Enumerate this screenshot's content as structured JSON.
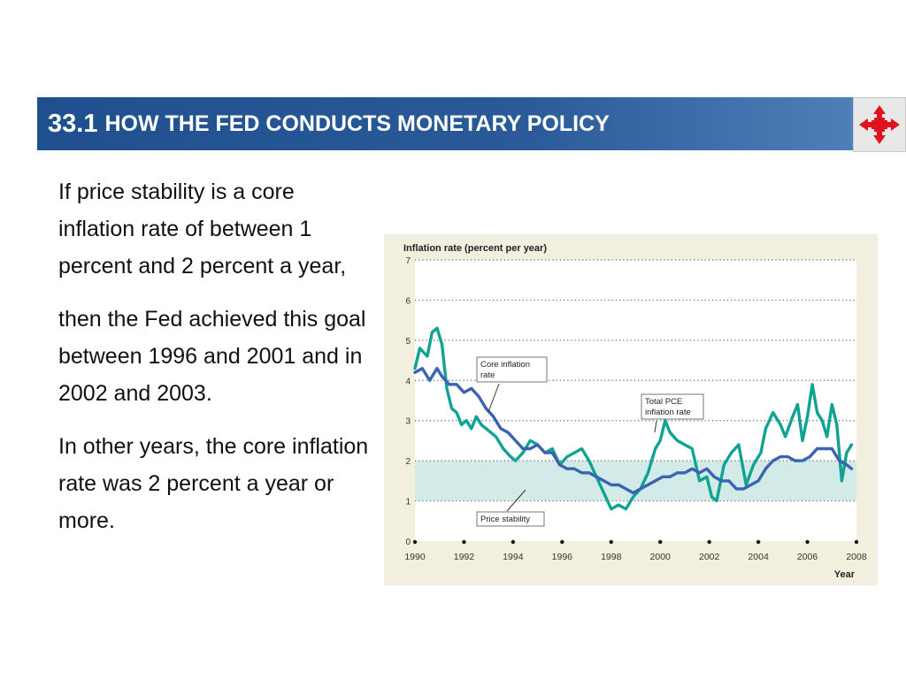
{
  "header": {
    "number": "33.1",
    "title": "HOW THE FED CONDUCTS MONETARY POLICY"
  },
  "nav_icon": "red-four-arrow-navigation-icon",
  "body": {
    "paragraphs": [
      "If price stability is a core inflation rate of between 1 percent and 2 percent a year,",
      "then the Fed achieved this goal between 1996 and 2001 and in 2002 and 2003.",
      "In other years, the core inflation rate was 2 percent a year or more."
    ]
  },
  "colors": {
    "header_blue": "#1f4f8f",
    "core_series": "#3a63b0",
    "total_series": "#10a394",
    "stability_band": "#d2ebe8",
    "panel_bg": "#f2efde",
    "nav_red": "#e0121d"
  },
  "chart_data": {
    "type": "line",
    "title": "Inflation rate (percent per year)",
    "xlabel": "Year",
    "ylabel": "",
    "xlim": [
      1990,
      2008
    ],
    "ylim": [
      0,
      7
    ],
    "x_ticks": [
      "1990",
      "1992",
      "1994",
      "1996",
      "1998",
      "2000",
      "2002",
      "2004",
      "2006",
      "2008"
    ],
    "y_ticks": [
      "0",
      "1",
      "2",
      "3",
      "4",
      "5",
      "6",
      "7"
    ],
    "grid": "dotted-horizontal",
    "shaded_band": {
      "from": 1,
      "to": 2,
      "label": "Price stability"
    },
    "annotations": [
      {
        "text": "Core inflation rate",
        "series": "core"
      },
      {
        "text": "Total PCE inflation rate",
        "series": "total"
      },
      {
        "text": "Price stability",
        "series": "band"
      }
    ],
    "series": [
      {
        "id": "core",
        "name": "Core inflation rate",
        "points": [
          [
            1990.0,
            4.2
          ],
          [
            1990.3,
            4.3
          ],
          [
            1990.6,
            4.0
          ],
          [
            1990.9,
            4.3
          ],
          [
            1991.1,
            4.1
          ],
          [
            1991.4,
            3.9
          ],
          [
            1991.7,
            3.9
          ],
          [
            1992.0,
            3.7
          ],
          [
            1992.3,
            3.8
          ],
          [
            1992.6,
            3.6
          ],
          [
            1992.9,
            3.3
          ],
          [
            1993.2,
            3.1
          ],
          [
            1993.5,
            2.8
          ],
          [
            1993.8,
            2.7
          ],
          [
            1994.1,
            2.5
          ],
          [
            1994.4,
            2.3
          ],
          [
            1994.7,
            2.3
          ],
          [
            1995.0,
            2.4
          ],
          [
            1995.3,
            2.2
          ],
          [
            1995.6,
            2.2
          ],
          [
            1995.9,
            1.9
          ],
          [
            1996.2,
            1.8
          ],
          [
            1996.5,
            1.8
          ],
          [
            1996.8,
            1.7
          ],
          [
            1997.1,
            1.7
          ],
          [
            1997.4,
            1.6
          ],
          [
            1997.7,
            1.5
          ],
          [
            1998.0,
            1.4
          ],
          [
            1998.3,
            1.4
          ],
          [
            1998.6,
            1.3
          ],
          [
            1998.9,
            1.2
          ],
          [
            1999.2,
            1.3
          ],
          [
            1999.5,
            1.4
          ],
          [
            1999.8,
            1.5
          ],
          [
            2000.1,
            1.6
          ],
          [
            2000.4,
            1.6
          ],
          [
            2000.7,
            1.7
          ],
          [
            2001.0,
            1.7
          ],
          [
            2001.3,
            1.8
          ],
          [
            2001.6,
            1.7
          ],
          [
            2001.9,
            1.8
          ],
          [
            2002.2,
            1.6
          ],
          [
            2002.5,
            1.5
          ],
          [
            2002.8,
            1.5
          ],
          [
            2003.1,
            1.3
          ],
          [
            2003.4,
            1.3
          ],
          [
            2003.7,
            1.4
          ],
          [
            2004.0,
            1.5
          ],
          [
            2004.3,
            1.8
          ],
          [
            2004.6,
            2.0
          ],
          [
            2004.9,
            2.1
          ],
          [
            2005.2,
            2.1
          ],
          [
            2005.5,
            2.0
          ],
          [
            2005.8,
            2.0
          ],
          [
            2006.1,
            2.1
          ],
          [
            2006.4,
            2.3
          ],
          [
            2006.7,
            2.3
          ],
          [
            2007.0,
            2.3
          ],
          [
            2007.3,
            2.0
          ],
          [
            2007.6,
            1.9
          ],
          [
            2007.8,
            1.8
          ]
        ]
      },
      {
        "id": "total",
        "name": "Total PCE inflation rate",
        "points": [
          [
            1990.0,
            4.3
          ],
          [
            1990.2,
            4.8
          ],
          [
            1990.5,
            4.6
          ],
          [
            1990.7,
            5.2
          ],
          [
            1990.9,
            5.3
          ],
          [
            1991.1,
            4.9
          ],
          [
            1991.3,
            3.8
          ],
          [
            1991.5,
            3.3
          ],
          [
            1991.7,
            3.2
          ],
          [
            1991.9,
            2.9
          ],
          [
            1992.1,
            3.0
          ],
          [
            1992.3,
            2.8
          ],
          [
            1992.5,
            3.1
          ],
          [
            1992.7,
            2.9
          ],
          [
            1992.9,
            2.8
          ],
          [
            1993.1,
            2.7
          ],
          [
            1993.3,
            2.6
          ],
          [
            1993.6,
            2.3
          ],
          [
            1993.9,
            2.1
          ],
          [
            1994.1,
            2.0
          ],
          [
            1994.4,
            2.2
          ],
          [
            1994.7,
            2.5
          ],
          [
            1995.0,
            2.4
          ],
          [
            1995.3,
            2.2
          ],
          [
            1995.6,
            2.3
          ],
          [
            1995.9,
            1.9
          ],
          [
            1996.2,
            2.1
          ],
          [
            1996.5,
            2.2
          ],
          [
            1996.8,
            2.3
          ],
          [
            1997.1,
            2.0
          ],
          [
            1997.4,
            1.6
          ],
          [
            1997.7,
            1.2
          ],
          [
            1998.0,
            0.8
          ],
          [
            1998.3,
            0.9
          ],
          [
            1998.6,
            0.8
          ],
          [
            1998.9,
            1.1
          ],
          [
            1999.2,
            1.3
          ],
          [
            1999.5,
            1.7
          ],
          [
            1999.8,
            2.3
          ],
          [
            2000.0,
            2.5
          ],
          [
            2000.2,
            3.0
          ],
          [
            2000.4,
            2.7
          ],
          [
            2000.7,
            2.5
          ],
          [
            2001.0,
            2.4
          ],
          [
            2001.3,
            2.3
          ],
          [
            2001.6,
            1.5
          ],
          [
            2001.9,
            1.6
          ],
          [
            2002.1,
            1.1
          ],
          [
            2002.3,
            1.0
          ],
          [
            2002.6,
            1.9
          ],
          [
            2002.9,
            2.2
          ],
          [
            2003.2,
            2.4
          ],
          [
            2003.5,
            1.4
          ],
          [
            2003.8,
            1.9
          ],
          [
            2004.1,
            2.2
          ],
          [
            2004.3,
            2.8
          ],
          [
            2004.6,
            3.2
          ],
          [
            2004.9,
            2.9
          ],
          [
            2005.1,
            2.6
          ],
          [
            2005.4,
            3.1
          ],
          [
            2005.6,
            3.4
          ],
          [
            2005.8,
            2.5
          ],
          [
            2006.0,
            3.1
          ],
          [
            2006.2,
            3.9
          ],
          [
            2006.4,
            3.2
          ],
          [
            2006.6,
            3.0
          ],
          [
            2006.8,
            2.6
          ],
          [
            2007.0,
            3.4
          ],
          [
            2007.2,
            2.9
          ],
          [
            2007.4,
            1.5
          ],
          [
            2007.6,
            2.2
          ],
          [
            2007.8,
            2.4
          ]
        ]
      }
    ]
  }
}
